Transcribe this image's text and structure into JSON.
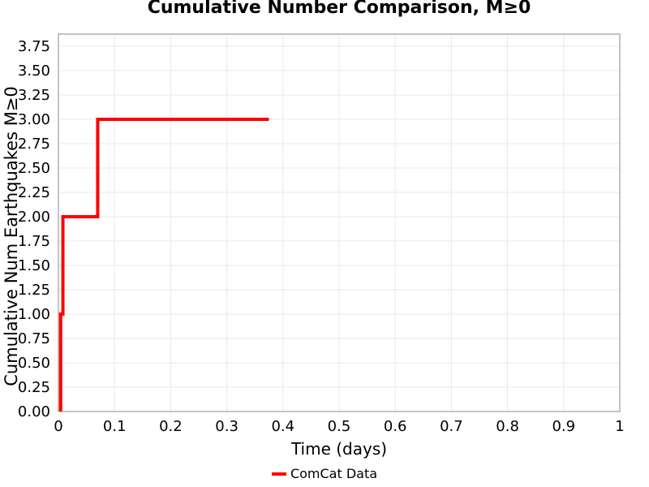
{
  "chart_data": {
    "type": "line",
    "line_style": "step",
    "title": "Cumulative Number Comparison, M≥0",
    "xlabel": "Time (days)",
    "ylabel": "Cumulative Num Earthquakes M≥0",
    "xlim": [
      0,
      1
    ],
    "ylim": [
      0,
      3.875
    ],
    "grid": true,
    "xtick_values": [
      0,
      0.1,
      0.2,
      0.3,
      0.4,
      0.5,
      0.6,
      0.7,
      0.8,
      0.9,
      1
    ],
    "xtick_labels": [
      "0",
      "0.1",
      "0.2",
      "0.3",
      "0.4",
      "0.5",
      "0.6",
      "0.7",
      "0.8",
      "0.9",
      "1"
    ],
    "ytick_values": [
      0,
      0.25,
      0.5,
      0.75,
      1,
      1.25,
      1.5,
      1.75,
      2,
      2.25,
      2.5,
      2.75,
      3,
      3.25,
      3.5,
      3.75
    ],
    "ytick_labels": [
      "0.00",
      "0.25",
      "0.50",
      "0.75",
      "1.00",
      "1.25",
      "1.50",
      "1.75",
      "2.00",
      "2.25",
      "2.50",
      "2.75",
      "3.00",
      "3.25",
      "3.50",
      "3.75"
    ],
    "colors": {
      "background": "#ffffff",
      "grid": "#e9e9e9",
      "spine": "#a3a3a3",
      "text": "#000000",
      "series_red": "#ff0000"
    },
    "legend": {
      "position": "bottom-center",
      "entries": [
        {
          "label": "ComCat Data",
          "color": "#ff0000"
        }
      ]
    },
    "series": [
      {
        "name": "ComCat Data",
        "color": "#ff0000",
        "line_width": 4,
        "points": [
          [
            0.004,
            0
          ],
          [
            0.004,
            1
          ],
          [
            0.008,
            1
          ],
          [
            0.008,
            2
          ],
          [
            0.07,
            2
          ],
          [
            0.07,
            3
          ],
          [
            0.375,
            3
          ]
        ]
      }
    ]
  }
}
